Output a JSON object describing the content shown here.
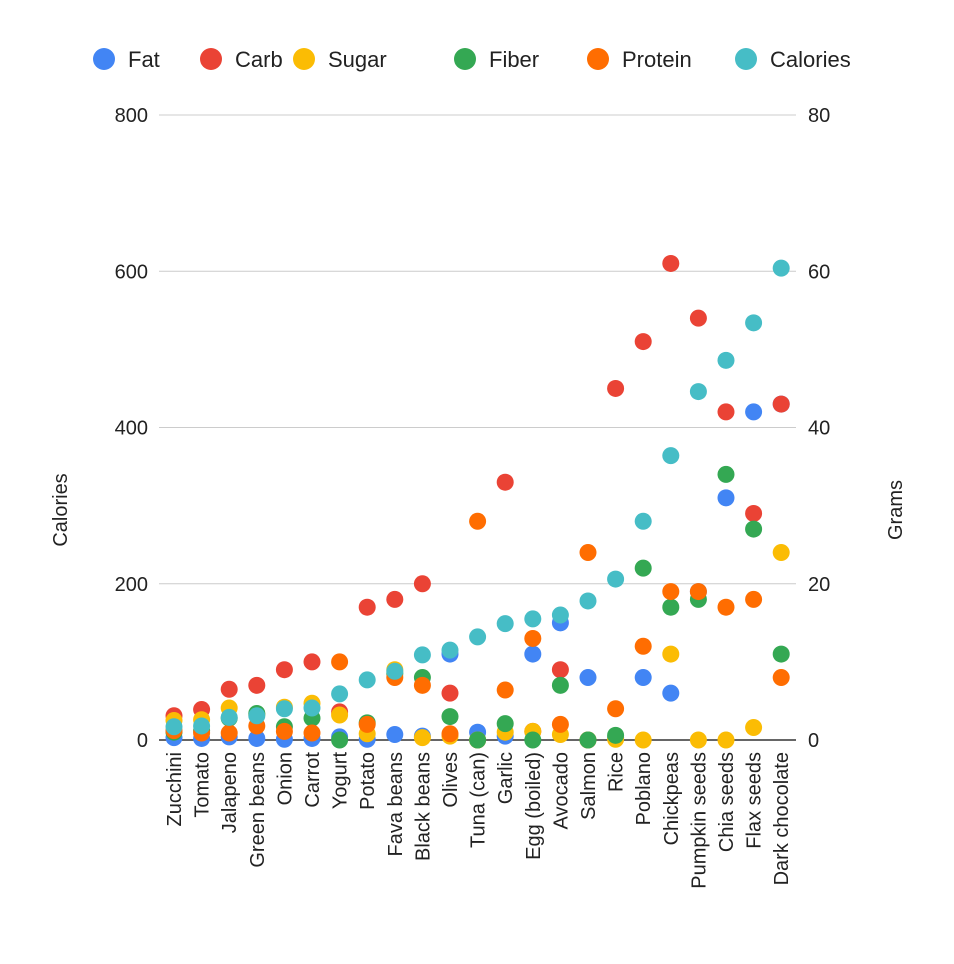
{
  "chart_data": {
    "type": "scatter",
    "title": "",
    "left_axis": {
      "label": "Calories",
      "min": 0,
      "max": 800,
      "ticks": [
        0,
        200,
        400,
        600,
        800
      ]
    },
    "right_axis": {
      "label": "Grams",
      "min": 0,
      "max": 80,
      "ticks": [
        0,
        20,
        40,
        60,
        80
      ]
    },
    "grid": true,
    "legend_position": "top",
    "categories": [
      "Zucchini",
      "Tomato",
      "Jalapeno",
      "Green beans",
      "Onion",
      "Carrot",
      "Yogurt",
      "Potato",
      "Fava beans",
      "Black beans",
      "Olives",
      "Tuna (can)",
      "Garlic",
      "Egg (boiled)",
      "Avocado",
      "Salmon",
      "Rice",
      "Poblano",
      "Chickpeas",
      "Pumpkin seeds",
      "Chia seeds",
      "Flax seeds",
      "Dark chocolate"
    ],
    "series": [
      {
        "name": "Fat",
        "axis": "right",
        "color": "#4285F4",
        "values": [
          0.3,
          0.2,
          0.4,
          0.2,
          0.1,
          0.2,
          0.4,
          0.1,
          0.7,
          0.5,
          11,
          1,
          0.5,
          11,
          15,
          8,
          0.3,
          8,
          6,
          19,
          31,
          42,
          43
        ]
      },
      {
        "name": "Carb",
        "axis": "right",
        "color": "#EA4335",
        "values": [
          3.1,
          3.9,
          6.5,
          7,
          9,
          10,
          3.6,
          17,
          18,
          20,
          6,
          0,
          33,
          1.1,
          9,
          0,
          45,
          51,
          61,
          54,
          42,
          29,
          43
        ]
      },
      {
        "name": "Sugar",
        "axis": "right",
        "color": "#FBBC04",
        "values": [
          2.5,
          2.6,
          4.1,
          3.3,
          4.2,
          4.7,
          3.2,
          0.8,
          9,
          0.3,
          0.5,
          0,
          1,
          1.1,
          0.7,
          0,
          0.1,
          0,
          11,
          0,
          0,
          1.6,
          24
        ]
      },
      {
        "name": "Fiber",
        "axis": "right",
        "color": "#34A853",
        "values": [
          1,
          1.2,
          2.8,
          3.4,
          1.7,
          2.8,
          0,
          2.2,
          8.5,
          8,
          3,
          0,
          2.1,
          0,
          7,
          0,
          0.6,
          22,
          17,
          18,
          34,
          27,
          11
        ]
      },
      {
        "name": "Protein",
        "axis": "right",
        "color": "#FF6D01",
        "values": [
          1.2,
          0.9,
          0.9,
          1.8,
          1.1,
          0.9,
          10,
          2,
          8,
          7,
          0.8,
          28,
          6.4,
          13,
          2,
          24,
          4,
          12,
          19,
          19,
          17,
          18,
          8
        ]
      },
      {
        "name": "Calories",
        "axis": "left",
        "color": "#46BDC6",
        "values": [
          17,
          18,
          29,
          31,
          40,
          41,
          59,
          77,
          88,
          109,
          115,
          132,
          149,
          155,
          160,
          178,
          206,
          280,
          364,
          446,
          486,
          534,
          604
        ]
      }
    ]
  }
}
